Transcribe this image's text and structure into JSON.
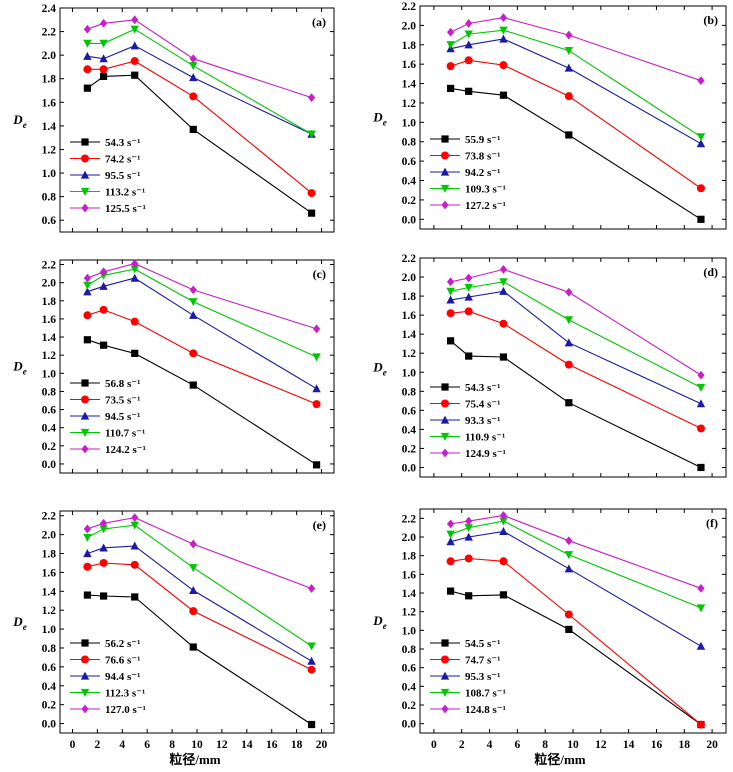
{
  "colors": {
    "54": "#000000",
    "74": "#ff0000",
    "95": "#1a1aa6",
    "113": "#00c800",
    "125": "#c81ec8"
  },
  "y_axis_title": "D",
  "y_axis_title_sub": "e",
  "x_axis_title": "粒径/mm",
  "chart_data": [
    {
      "type": "line",
      "label": "(a)",
      "x": [
        1.2,
        2.5,
        5,
        9.7,
        19.2
      ],
      "ylim": [
        0.5,
        2.4
      ],
      "yticks": [
        "0.6",
        "0.8",
        "1.0",
        "1.2",
        "1.4",
        "1.6",
        "1.8",
        "2.0",
        "2.2",
        "2.4"
      ],
      "series": [
        {
          "name": "54.3 s⁻¹",
          "color_key": "54",
          "marker": "square",
          "values": [
            1.72,
            1.82,
            1.83,
            1.37,
            0.66
          ]
        },
        {
          "name": "74.2 s⁻¹",
          "color_key": "74",
          "marker": "circle",
          "values": [
            1.88,
            1.88,
            1.95,
            1.65,
            0.83
          ]
        },
        {
          "name": "95.5 s⁻¹",
          "color_key": "95",
          "marker": "triangle-up",
          "values": [
            1.99,
            1.97,
            2.08,
            1.81,
            1.33
          ]
        },
        {
          "name": "113.2 s⁻¹",
          "color_key": "113",
          "marker": "triangle-down",
          "values": [
            2.1,
            2.1,
            2.22,
            1.91,
            1.33
          ]
        },
        {
          "name": "125.5 s⁻¹",
          "color_key": "125",
          "marker": "diamond",
          "values": [
            2.22,
            2.27,
            2.3,
            1.97,
            1.64
          ]
        }
      ]
    },
    {
      "type": "line",
      "label": "(b)",
      "x": [
        1.2,
        2.5,
        5,
        9.7,
        19.2
      ],
      "ylim": [
        -0.1,
        2.2
      ],
      "yticks": [
        "0.0",
        "0.2",
        "0.4",
        "0.6",
        "0.8",
        "1.0",
        "1.2",
        "1.4",
        "1.6",
        "1.8",
        "2.0",
        "2.2"
      ],
      "series": [
        {
          "name": "55.9 s⁻¹",
          "color_key": "54",
          "marker": "square",
          "values": [
            1.35,
            1.32,
            1.28,
            0.87,
            0.0
          ]
        },
        {
          "name": "73.8 s⁻¹",
          "color_key": "74",
          "marker": "circle",
          "values": [
            1.58,
            1.64,
            1.59,
            1.27,
            0.32
          ]
        },
        {
          "name": "94.2 s⁻¹",
          "color_key": "95",
          "marker": "triangle-up",
          "values": [
            1.76,
            1.8,
            1.86,
            1.56,
            0.78
          ]
        },
        {
          "name": "109.3 s⁻¹",
          "color_key": "113",
          "marker": "triangle-down",
          "values": [
            1.8,
            1.91,
            1.95,
            1.74,
            0.85
          ]
        },
        {
          "name": "127.2 s⁻¹",
          "color_key": "125",
          "marker": "diamond",
          "values": [
            1.93,
            2.02,
            2.08,
            1.9,
            1.43
          ]
        }
      ]
    },
    {
      "type": "line",
      "label": "(c)",
      "x": [
        1.2,
        2.5,
        5,
        9.7,
        19.6
      ],
      "ylim": [
        -0.1,
        2.25
      ],
      "yticks": [
        "0.0",
        "0.2",
        "0.4",
        "0.6",
        "0.8",
        "1.0",
        "1.2",
        "1.4",
        "1.6",
        "1.8",
        "2.0",
        "2.2"
      ],
      "series": [
        {
          "name": "56.8 s⁻¹",
          "color_key": "54",
          "marker": "square",
          "values": [
            1.37,
            1.31,
            1.22,
            0.87,
            -0.01
          ]
        },
        {
          "name": "73.5 s⁻¹",
          "color_key": "74",
          "marker": "circle",
          "values": [
            1.64,
            1.7,
            1.57,
            1.22,
            0.66
          ]
        },
        {
          "name": "94.5 s⁻¹",
          "color_key": "95",
          "marker": "triangle-up",
          "values": [
            1.9,
            1.96,
            2.05,
            1.64,
            0.83
          ]
        },
        {
          "name": "110.7 s⁻¹",
          "color_key": "113",
          "marker": "triangle-down",
          "values": [
            1.97,
            2.08,
            2.15,
            1.79,
            1.18
          ]
        },
        {
          "name": "124.2 s⁻¹",
          "color_key": "125",
          "marker": "diamond",
          "values": [
            2.05,
            2.12,
            2.21,
            1.92,
            1.49
          ]
        }
      ]
    },
    {
      "type": "line",
      "label": "(d)",
      "x": [
        1.2,
        2.5,
        5,
        9.7,
        19.2
      ],
      "ylim": [
        -0.1,
        2.2
      ],
      "yticks": [
        "0.0",
        "0.2",
        "0.4",
        "0.6",
        "0.8",
        "1.0",
        "1.2",
        "1.4",
        "1.6",
        "1.8",
        "2.0",
        "2.2"
      ],
      "series": [
        {
          "name": "54.3 s⁻¹",
          "color_key": "54",
          "marker": "square",
          "values": [
            1.33,
            1.17,
            1.16,
            0.68,
            0.0
          ]
        },
        {
          "name": "75.4 s⁻¹",
          "color_key": "74",
          "marker": "circle",
          "values": [
            1.62,
            1.64,
            1.51,
            1.08,
            0.41
          ]
        },
        {
          "name": "93.3 s⁻¹",
          "color_key": "95",
          "marker": "triangle-up",
          "values": [
            1.76,
            1.79,
            1.85,
            1.31,
            0.67
          ]
        },
        {
          "name": "110.9 s⁻¹",
          "color_key": "113",
          "marker": "triangle-down",
          "values": [
            1.85,
            1.89,
            1.95,
            1.55,
            0.84
          ]
        },
        {
          "name": "124.9 s⁻¹",
          "color_key": "125",
          "marker": "diamond",
          "values": [
            1.95,
            1.99,
            2.08,
            1.84,
            0.97
          ]
        }
      ]
    },
    {
      "type": "line",
      "label": "(e)",
      "x": [
        1.2,
        2.5,
        5,
        9.7,
        19.2
      ],
      "xticks": [
        "0",
        "2",
        "4",
        "6",
        "8",
        "10",
        "12",
        "14",
        "16",
        "18",
        "20"
      ],
      "ylim": [
        -0.1,
        2.25
      ],
      "yticks": [
        "0.0",
        "0.2",
        "0.4",
        "0.6",
        "0.8",
        "1.0",
        "1.2",
        "1.4",
        "1.6",
        "1.8",
        "2.0",
        "2.2"
      ],
      "series": [
        {
          "name": "56.2 s⁻¹",
          "color_key": "54",
          "marker": "square",
          "values": [
            1.36,
            1.35,
            1.34,
            0.81,
            -0.01
          ]
        },
        {
          "name": "76.6 s⁻¹",
          "color_key": "74",
          "marker": "circle",
          "values": [
            1.66,
            1.7,
            1.68,
            1.19,
            0.57
          ]
        },
        {
          "name": "94.4 s⁻¹",
          "color_key": "95",
          "marker": "triangle-up",
          "values": [
            1.8,
            1.86,
            1.88,
            1.41,
            0.66
          ]
        },
        {
          "name": "112.3 s⁻¹",
          "color_key": "113",
          "marker": "triangle-down",
          "values": [
            1.97,
            2.06,
            2.1,
            1.65,
            0.82
          ]
        },
        {
          "name": "127.0 s⁻¹",
          "color_key": "125",
          "marker": "diamond",
          "values": [
            2.06,
            2.12,
            2.18,
            1.9,
            1.43
          ]
        }
      ]
    },
    {
      "type": "line",
      "label": "(f)",
      "x": [
        1.2,
        2.5,
        5,
        9.7,
        19.2
      ],
      "xticks": [
        "0",
        "2",
        "4",
        "6",
        "8",
        "10",
        "12",
        "14",
        "16",
        "18",
        "20"
      ],
      "ylim": [
        -0.1,
        2.3
      ],
      "yticks": [
        "0.0",
        "0.2",
        "0.4",
        "0.6",
        "0.8",
        "1.0",
        "1.2",
        "1.4",
        "1.6",
        "1.8",
        "2.0",
        "2.2"
      ],
      "series": [
        {
          "name": "54.5 s⁻¹",
          "color_key": "54",
          "marker": "square",
          "values": [
            1.42,
            1.37,
            1.38,
            1.01,
            -0.01
          ]
        },
        {
          "name": "74.7 s⁻¹",
          "color_key": "74",
          "marker": "circle",
          "values": [
            1.74,
            1.77,
            1.74,
            1.17,
            -0.01
          ]
        },
        {
          "name": "95.3 s⁻¹",
          "color_key": "95",
          "marker": "triangle-up",
          "values": [
            1.95,
            2.0,
            2.06,
            1.66,
            0.83
          ]
        },
        {
          "name": "108.7 s⁻¹",
          "color_key": "113",
          "marker": "triangle-down",
          "values": [
            2.03,
            2.1,
            2.17,
            1.81,
            1.24
          ]
        },
        {
          "name": "124.8 s⁻¹",
          "color_key": "125",
          "marker": "diamond",
          "values": [
            2.14,
            2.17,
            2.23,
            1.96,
            1.45
          ]
        }
      ]
    }
  ]
}
